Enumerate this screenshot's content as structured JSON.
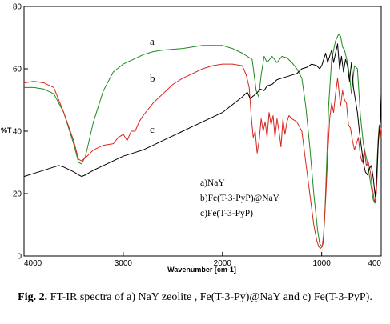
{
  "chart_data": {
    "type": "line",
    "xlabel": "Wavenumber [cm-1]",
    "ylabel": "%T",
    "xlim": [
      4000,
      400
    ],
    "ylim": [
      0,
      80
    ],
    "x_ticks": [
      "4000",
      "3000",
      "2000",
      "1000",
      "400"
    ],
    "x_tick_values": [
      4000,
      3000,
      2000,
      1000,
      400
    ],
    "y_ticks": [
      "0",
      "20",
      "40",
      "60",
      "80"
    ],
    "y_tick_values": [
      0,
      20,
      40,
      60,
      80
    ],
    "legend": [
      "a)NaY",
      "b)Fe(T-3-PyP)@NaY",
      "c)Fe(T-3-PyP)"
    ],
    "series": [
      {
        "name": "a",
        "color": "#1f8a1f",
        "points": [
          [
            4000,
            54
          ],
          [
            3900,
            54
          ],
          [
            3800,
            53.5
          ],
          [
            3700,
            52
          ],
          [
            3600,
            46
          ],
          [
            3500,
            36
          ],
          [
            3450,
            30
          ],
          [
            3420,
            29.5
          ],
          [
            3380,
            32
          ],
          [
            3300,
            43
          ],
          [
            3200,
            53
          ],
          [
            3100,
            59
          ],
          [
            3000,
            61.5
          ],
          [
            2900,
            63
          ],
          [
            2800,
            64.5
          ],
          [
            2700,
            65.5
          ],
          [
            2600,
            66
          ],
          [
            2400,
            66.5
          ],
          [
            2200,
            67.5
          ],
          [
            2000,
            67.5
          ],
          [
            1900,
            66.5
          ],
          [
            1800,
            65
          ],
          [
            1750,
            64
          ],
          [
            1700,
            63
          ],
          [
            1660,
            53
          ],
          [
            1635,
            51
          ],
          [
            1610,
            58
          ],
          [
            1580,
            64
          ],
          [
            1550,
            62
          ],
          [
            1500,
            64
          ],
          [
            1450,
            62
          ],
          [
            1400,
            64
          ],
          [
            1350,
            63.5
          ],
          [
            1300,
            62
          ],
          [
            1250,
            60
          ],
          [
            1200,
            57
          ],
          [
            1160,
            48
          ],
          [
            1120,
            35
          ],
          [
            1080,
            20
          ],
          [
            1040,
            8
          ],
          [
            1020,
            4
          ],
          [
            1000,
            3
          ],
          [
            985,
            4
          ],
          [
            970,
            12
          ],
          [
            950,
            30
          ],
          [
            930,
            48
          ],
          [
            900,
            63
          ],
          [
            860,
            69
          ],
          [
            830,
            71
          ],
          [
            810,
            70.5
          ],
          [
            790,
            67
          ],
          [
            770,
            66
          ],
          [
            740,
            62
          ],
          [
            720,
            58
          ],
          [
            700,
            52
          ],
          [
            690,
            55
          ],
          [
            670,
            61
          ],
          [
            640,
            60
          ],
          [
            610,
            45
          ],
          [
            580,
            36
          ],
          [
            560,
            33
          ],
          [
            540,
            30
          ],
          [
            520,
            26
          ],
          [
            500,
            22
          ],
          [
            480,
            18
          ],
          [
            465,
            17
          ],
          [
            450,
            20
          ],
          [
            440,
            31
          ],
          [
            430,
            38
          ],
          [
            420,
            42
          ],
          [
            410,
            40
          ],
          [
            400,
            38
          ]
        ]
      },
      {
        "name": "b",
        "color": "#d7261e",
        "points": [
          [
            4000,
            55.5
          ],
          [
            3900,
            56
          ],
          [
            3800,
            55.5
          ],
          [
            3700,
            54
          ],
          [
            3600,
            46
          ],
          [
            3500,
            37
          ],
          [
            3450,
            31
          ],
          [
            3420,
            30.5
          ],
          [
            3380,
            31.5
          ],
          [
            3300,
            34
          ],
          [
            3200,
            35.5
          ],
          [
            3100,
            36
          ],
          [
            3050,
            38
          ],
          [
            3000,
            39
          ],
          [
            2960,
            37
          ],
          [
            2920,
            40
          ],
          [
            2880,
            40
          ],
          [
            2840,
            43
          ],
          [
            2800,
            45
          ],
          [
            2700,
            49
          ],
          [
            2600,
            52
          ],
          [
            2500,
            55
          ],
          [
            2400,
            57
          ],
          [
            2300,
            58.5
          ],
          [
            2200,
            60
          ],
          [
            2100,
            61
          ],
          [
            2000,
            61.5
          ],
          [
            1900,
            61.5
          ],
          [
            1800,
            61
          ],
          [
            1760,
            58
          ],
          [
            1730,
            54
          ],
          [
            1710,
            45
          ],
          [
            1690,
            38
          ],
          [
            1670,
            40
          ],
          [
            1650,
            33
          ],
          [
            1630,
            37
          ],
          [
            1610,
            44
          ],
          [
            1590,
            40
          ],
          [
            1570,
            43
          ],
          [
            1550,
            38
          ],
          [
            1530,
            46
          ],
          [
            1510,
            42
          ],
          [
            1490,
            45
          ],
          [
            1470,
            38
          ],
          [
            1450,
            44
          ],
          [
            1430,
            40
          ],
          [
            1410,
            35
          ],
          [
            1390,
            44
          ],
          [
            1370,
            39
          ],
          [
            1350,
            43
          ],
          [
            1330,
            45
          ],
          [
            1300,
            44
          ],
          [
            1250,
            43
          ],
          [
            1200,
            40
          ],
          [
            1160,
            30
          ],
          [
            1120,
            20
          ],
          [
            1080,
            10
          ],
          [
            1050,
            5
          ],
          [
            1030,
            3
          ],
          [
            1010,
            2.5
          ],
          [
            995,
            3
          ],
          [
            980,
            7
          ],
          [
            960,
            18
          ],
          [
            940,
            32
          ],
          [
            920,
            44
          ],
          [
            900,
            49
          ],
          [
            880,
            46
          ],
          [
            860,
            52
          ],
          [
            840,
            57
          ],
          [
            820,
            51
          ],
          [
            810,
            48
          ],
          [
            790,
            53
          ],
          [
            770,
            50
          ],
          [
            750,
            49
          ],
          [
            730,
            42
          ],
          [
            710,
            41
          ],
          [
            690,
            37
          ],
          [
            670,
            34
          ],
          [
            650,
            36
          ],
          [
            630,
            38
          ],
          [
            610,
            32
          ],
          [
            590,
            30
          ],
          [
            570,
            34
          ],
          [
            550,
            29
          ],
          [
            530,
            30
          ],
          [
            510,
            27
          ],
          [
            490,
            22
          ],
          [
            470,
            18
          ],
          [
            460,
            17
          ],
          [
            450,
            20
          ],
          [
            440,
            26
          ],
          [
            430,
            37
          ],
          [
            420,
            41
          ],
          [
            410,
            38
          ],
          [
            400,
            41
          ]
        ]
      },
      {
        "name": "c",
        "color": "#000000",
        "points": [
          [
            4000,
            25.5
          ],
          [
            3900,
            26.5
          ],
          [
            3800,
            27.5
          ],
          [
            3700,
            28.5
          ],
          [
            3650,
            29
          ],
          [
            3600,
            28.5
          ],
          [
            3500,
            27
          ],
          [
            3450,
            26
          ],
          [
            3420,
            25.5
          ],
          [
            3380,
            26
          ],
          [
            3300,
            27.5
          ],
          [
            3200,
            29
          ],
          [
            3100,
            30.5
          ],
          [
            3000,
            32
          ],
          [
            2900,
            33
          ],
          [
            2800,
            34
          ],
          [
            2700,
            35.5
          ],
          [
            2600,
            37
          ],
          [
            2500,
            38.5
          ],
          [
            2400,
            40
          ],
          [
            2300,
            41.5
          ],
          [
            2200,
            43
          ],
          [
            2100,
            44.5
          ],
          [
            2000,
            46
          ],
          [
            1900,
            48.5
          ],
          [
            1800,
            51
          ],
          [
            1750,
            52.5
          ],
          [
            1720,
            50.5
          ],
          [
            1700,
            51
          ],
          [
            1660,
            52
          ],
          [
            1620,
            53.5
          ],
          [
            1580,
            53
          ],
          [
            1550,
            54.5
          ],
          [
            1500,
            55
          ],
          [
            1450,
            56.5
          ],
          [
            1400,
            57
          ],
          [
            1350,
            57.5
          ],
          [
            1300,
            58
          ],
          [
            1250,
            58.5
          ],
          [
            1200,
            60
          ],
          [
            1150,
            60.5
          ],
          [
            1100,
            61.5
          ],
          [
            1050,
            61
          ],
          [
            1020,
            60
          ],
          [
            1000,
            61
          ],
          [
            980,
            63
          ],
          [
            960,
            65
          ],
          [
            940,
            62
          ],
          [
            920,
            64
          ],
          [
            900,
            66
          ],
          [
            880,
            62
          ],
          [
            860,
            65
          ],
          [
            840,
            68
          ],
          [
            820,
            60
          ],
          [
            800,
            64
          ],
          [
            780,
            59
          ],
          [
            760,
            63
          ],
          [
            740,
            61
          ],
          [
            720,
            56
          ],
          [
            700,
            62
          ],
          [
            680,
            54
          ],
          [
            660,
            50
          ],
          [
            640,
            46
          ],
          [
            620,
            40
          ],
          [
            600,
            35
          ],
          [
            580,
            30
          ],
          [
            560,
            27
          ],
          [
            540,
            26
          ],
          [
            520,
            28
          ],
          [
            500,
            29
          ],
          [
            480,
            25
          ],
          [
            470,
            22
          ],
          [
            460,
            19
          ],
          [
            450,
            23
          ],
          [
            440,
            29
          ],
          [
            430,
            36
          ],
          [
            420,
            40
          ],
          [
            410,
            43
          ],
          [
            400,
            52
          ]
        ]
      }
    ]
  },
  "curve_labels": [
    "a",
    "b",
    "c"
  ],
  "caption": {
    "label": "Fig. 2.",
    "text": " FT-IR spectra of a) NaY zeolite , Fe(T-3-Py)@NaY and c) Fe(T-3-PyP)."
  }
}
